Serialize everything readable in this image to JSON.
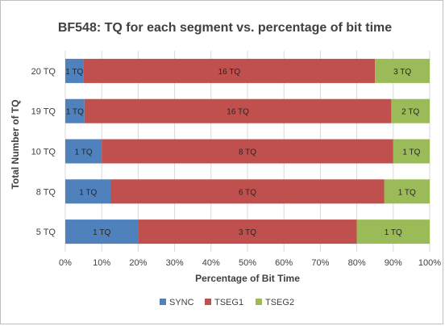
{
  "chart_data": {
    "type": "bar",
    "orientation": "horizontal",
    "stacked": "percent",
    "title": "BF548: TQ for each segment vs. percentage of bit time",
    "xlabel": "Percentage of Bit Time",
    "ylabel": "Total Number of TQ",
    "categories": [
      "20 TQ",
      "19 TQ",
      "10 TQ",
      "8 TQ",
      "5 TQ"
    ],
    "series": [
      {
        "name": "SYNC",
        "color": "#4f81bd",
        "values": [
          5,
          5.26,
          10,
          12.5,
          20
        ],
        "labels": [
          "1 TQ",
          "1 TQ",
          "1 TQ",
          "1 TQ",
          "1 TQ"
        ]
      },
      {
        "name": "TSEG1",
        "color": "#c0504d",
        "values": [
          80,
          84.21,
          80,
          75,
          60
        ],
        "labels": [
          "16 TQ",
          "16 TQ",
          "8 TQ",
          "6 TQ",
          "3 TQ"
        ]
      },
      {
        "name": "TSEG2",
        "color": "#9bbb59",
        "values": [
          15,
          10.53,
          10,
          12.5,
          20
        ],
        "labels": [
          "3 TQ",
          "2 TQ",
          "1 TQ",
          "1 TQ",
          "1 TQ"
        ]
      }
    ],
    "xlim": [
      0,
      100
    ],
    "xticks": [
      "0%",
      "10%",
      "20%",
      "30%",
      "40%",
      "50%",
      "60%",
      "70%",
      "80%",
      "90%",
      "100%"
    ],
    "grid": true,
    "legend": "bottom"
  }
}
